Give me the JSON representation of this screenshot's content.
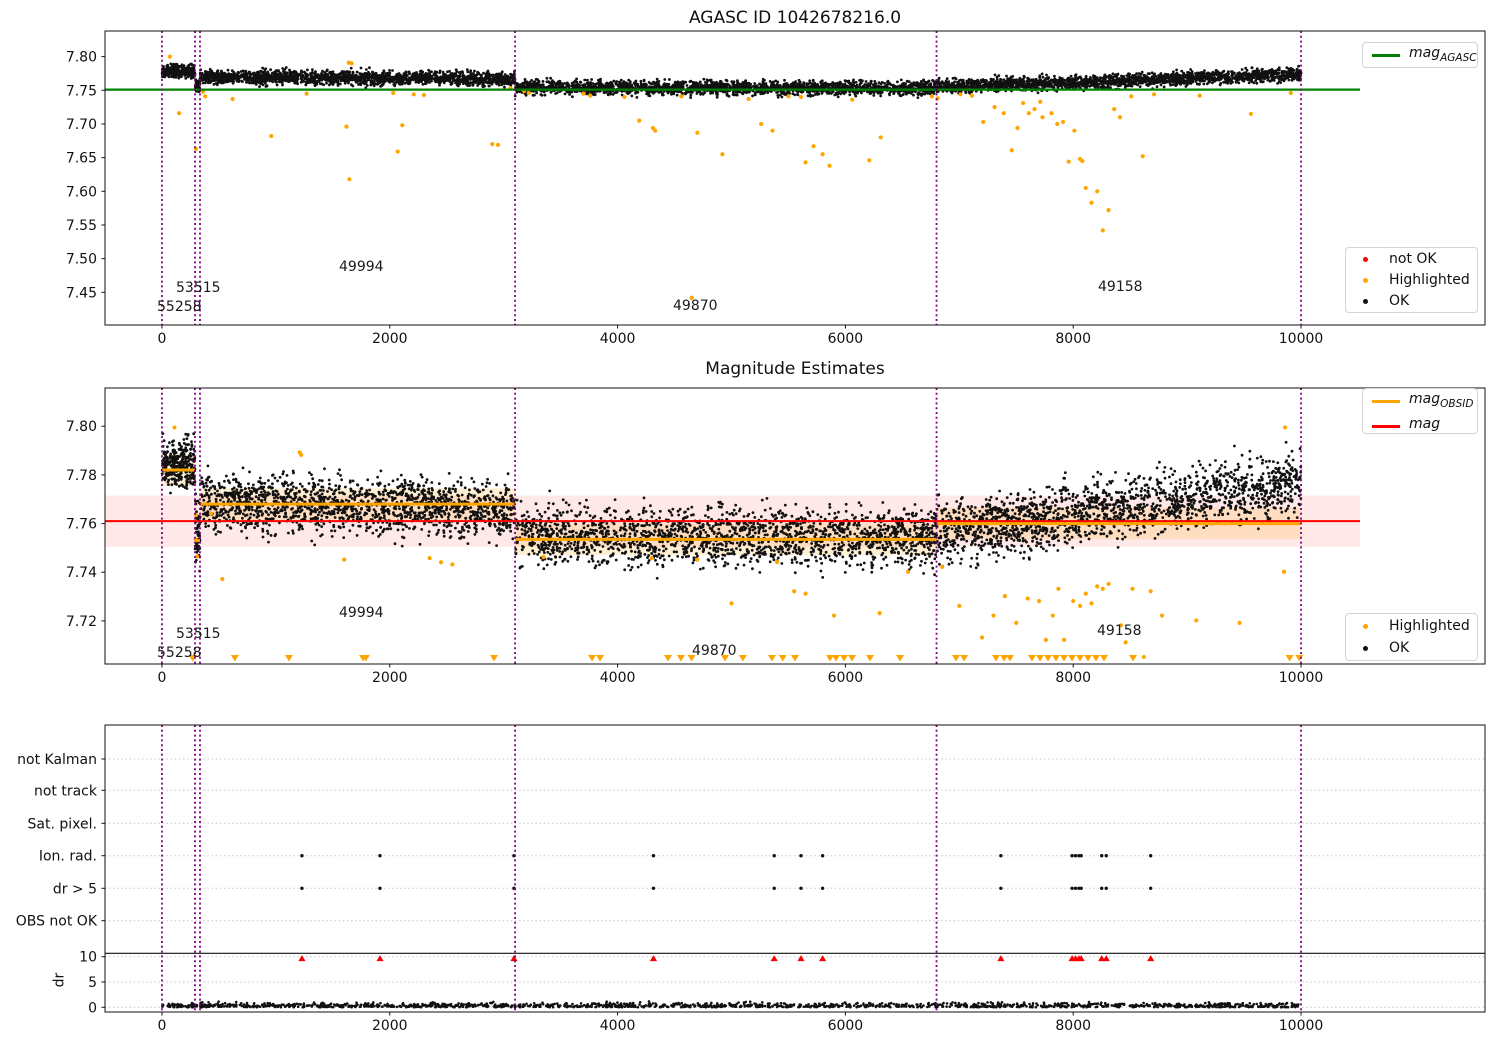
{
  "colors": {
    "ok": "#111111",
    "highlighted": "#ffa500",
    "not_ok": "#ff0000",
    "mag_agasc_line": "#008000",
    "mag_line": "#ff0000",
    "mag_obsid_line": "#ffa500",
    "obsid_boundary": "#800080",
    "mag_err_band": "rgba(255,0,0,0.09)",
    "obsid_band": "rgba(255,165,0,0.17)",
    "grid": "#c8c8c8",
    "spine": "#111111"
  },
  "chart_data": [
    {
      "type": "scatter",
      "title": "AGASC ID 1042678216.0",
      "xlim": [
        -500,
        11615
      ],
      "ylim": [
        7.4015,
        7.838
      ],
      "xticks": [
        0,
        2000,
        4000,
        6000,
        8000,
        10000
      ],
      "yticks": [
        7.45,
        7.5,
        7.55,
        7.6,
        7.65,
        7.7,
        7.75,
        7.8
      ],
      "grid": false,
      "mag_agasc": 7.751,
      "obsid_boundaries": [
        0,
        290,
        334,
        3100,
        6800,
        10000
      ],
      "legend_line": {
        "label": "mag",
        "sub": "AGASC"
      },
      "legend_points": [
        {
          "label": "not OK",
          "color": "#ff0000"
        },
        {
          "label": "Highlighted",
          "color": "#ffa500"
        },
        {
          "label": "OK",
          "color": "#111111"
        }
      ],
      "annotations": [
        {
          "text": "55258",
          "x": -45,
          "y": 7.425
        },
        {
          "text": "53515",
          "x": 120,
          "y": 7.452
        },
        {
          "text": "49994",
          "x": 1560,
          "y": 7.487
        },
        {
          "text": "49870",
          "x": 4490,
          "y": 7.428
        },
        {
          "text": "49158",
          "x": 8220,
          "y": 7.457
        }
      ],
      "ok_segments": [
        {
          "x0": 0,
          "x1": 290,
          "m0": 7.7775,
          "m1": 7.778,
          "sigma": 0.0048,
          "n": 300
        },
        {
          "x0": 290,
          "x1": 334,
          "m0": 7.757,
          "m1": 7.753,
          "sigma": 0.0042,
          "n": 60
        },
        {
          "x0": 334,
          "x1": 3100,
          "m0": 7.77,
          "m1": 7.7665,
          "sigma": 0.005,
          "n": 1750
        },
        {
          "x0": 3100,
          "x1": 6800,
          "m0": 7.754,
          "m1": 7.753,
          "sigma": 0.005,
          "n": 2100
        },
        {
          "x0": 6800,
          "x1": 10000,
          "m0": 7.755,
          "m1": 7.7735,
          "sigma": 0.005,
          "n": 1900
        }
      ],
      "highlighted": [
        [
          70,
          7.8
        ],
        [
          150,
          7.716
        ],
        [
          298,
          7.663
        ],
        [
          360,
          7.748
        ],
        [
          380,
          7.741
        ],
        [
          620,
          7.737
        ],
        [
          960,
          7.682
        ],
        [
          1270,
          7.745
        ],
        [
          1640,
          7.791
        ],
        [
          1665,
          7.79
        ],
        [
          1620,
          7.696
        ],
        [
          1645,
          7.618
        ],
        [
          2030,
          7.746
        ],
        [
          2070,
          7.659
        ],
        [
          2110,
          7.698
        ],
        [
          2210,
          7.744
        ],
        [
          2300,
          7.743
        ],
        [
          2900,
          7.67
        ],
        [
          2950,
          7.669
        ],
        [
          3060,
          7.753
        ],
        [
          3180,
          7.749
        ],
        [
          3220,
          7.746
        ],
        [
          3700,
          7.745
        ],
        [
          3760,
          7.742
        ],
        [
          4060,
          7.74
        ],
        [
          4190,
          7.705
        ],
        [
          4310,
          7.694
        ],
        [
          4330,
          7.69
        ],
        [
          4560,
          7.741
        ],
        [
          4650,
          7.442
        ],
        [
          4700,
          7.687
        ],
        [
          4920,
          7.655
        ],
        [
          5150,
          7.737
        ],
        [
          5260,
          7.7
        ],
        [
          5360,
          7.69
        ],
        [
          5500,
          7.741
        ],
        [
          5610,
          7.74
        ],
        [
          5650,
          7.643
        ],
        [
          5720,
          7.667
        ],
        [
          5800,
          7.655
        ],
        [
          5860,
          7.638
        ],
        [
          6060,
          7.736
        ],
        [
          6210,
          7.646
        ],
        [
          6310,
          7.68
        ],
        [
          6760,
          7.741
        ],
        [
          6810,
          7.738
        ],
        [
          7010,
          7.744
        ],
        [
          7110,
          7.742
        ],
        [
          7210,
          7.703
        ],
        [
          7310,
          7.725
        ],
        [
          7390,
          7.716
        ],
        [
          7460,
          7.661
        ],
        [
          7510,
          7.694
        ],
        [
          7560,
          7.731
        ],
        [
          7610,
          7.716
        ],
        [
          7660,
          7.722
        ],
        [
          7710,
          7.733
        ],
        [
          7730,
          7.71
        ],
        [
          7810,
          7.716
        ],
        [
          7860,
          7.7
        ],
        [
          7910,
          7.703
        ],
        [
          7960,
          7.644
        ],
        [
          8010,
          7.69
        ],
        [
          8060,
          7.648
        ],
        [
          8080,
          7.645
        ],
        [
          8110,
          7.605
        ],
        [
          8160,
          7.583
        ],
        [
          8210,
          7.6
        ],
        [
          8260,
          7.542
        ],
        [
          8310,
          7.572
        ],
        [
          8360,
          7.722
        ],
        [
          8410,
          7.71
        ],
        [
          8510,
          7.741
        ],
        [
          8610,
          7.652
        ],
        [
          8710,
          7.744
        ],
        [
          9110,
          7.742
        ],
        [
          9560,
          7.715
        ],
        [
          9910,
          7.746
        ]
      ]
    },
    {
      "type": "scatter",
      "title": "Magnitude Estimates",
      "xlim": [
        -500,
        11615
      ],
      "ylim": [
        7.7023,
        7.8157
      ],
      "xticks": [
        0,
        2000,
        4000,
        6000,
        8000,
        10000
      ],
      "yticks": [
        7.72,
        7.74,
        7.76,
        7.78,
        7.8
      ],
      "grid": false,
      "mag": 7.761,
      "mag_err": [
        7.7505,
        7.7715
      ],
      "obsid_segments": [
        {
          "x0": 0,
          "x1": 290,
          "mag": 7.782,
          "band": 0.0065
        },
        {
          "x0": 290,
          "x1": 334,
          "mag": 7.753,
          "band": 0
        },
        {
          "x0": 334,
          "x1": 3100,
          "mag": 7.768,
          "band": 0.0065
        },
        {
          "x0": 3100,
          "x1": 6800,
          "mag": 7.7535,
          "band": 0.0065
        },
        {
          "x0": 6800,
          "x1": 10000,
          "mag": 7.76,
          "band": 0.0065
        }
      ],
      "obsid_boundaries": [
        0,
        290,
        334,
        3100,
        6800,
        10000
      ],
      "legend_lines": [
        {
          "label": "mag",
          "sub": "OBSID",
          "color": "#ffa500"
        },
        {
          "label": "mag",
          "sub": "",
          "color": "#ff0000"
        }
      ],
      "legend_points": [
        {
          "label": "Highlighted",
          "color": "#ffa500"
        },
        {
          "label": "OK",
          "color": "#111111"
        }
      ],
      "annotations": [
        {
          "text": "55258",
          "x": -45,
          "y": 7.7085
        },
        {
          "text": "53515",
          "x": 120,
          "y": 7.716
        },
        {
          "text": "49994",
          "x": 1560,
          "y": 7.7245
        },
        {
          "text": "49870",
          "x": 4660,
          "y": 7.708
        },
        {
          "text": "49158",
          "x": 8210,
          "y": 7.7165
        }
      ],
      "ok_segments": [
        {
          "x0": 0,
          "x1": 290,
          "m0": 7.7845,
          "m1": 7.7845,
          "sigma": 0.0048,
          "n": 320
        },
        {
          "x0": 290,
          "x1": 334,
          "m0": 7.757,
          "m1": 7.755,
          "sigma": 0.0062,
          "n": 60
        },
        {
          "x0": 334,
          "x1": 3100,
          "m0": 7.769,
          "m1": 7.7655,
          "sigma": 0.0058,
          "n": 1600
        },
        {
          "x0": 3100,
          "x1": 6800,
          "m0": 7.7548,
          "m1": 7.7542,
          "sigma": 0.0058,
          "n": 1900
        },
        {
          "x0": 6800,
          "x1": 10000,
          "m0": 7.756,
          "m1": 7.776,
          "sigma": 0.0062,
          "n": 1750
        }
      ],
      "highlighted": [
        [
          110,
          7.7995
        ],
        [
          295,
          7.7535
        ],
        [
          300,
          7.7635
        ],
        [
          310,
          7.7465
        ],
        [
          430,
          7.7641
        ],
        [
          530,
          7.7372
        ],
        [
          1210,
          7.7892
        ],
        [
          1222,
          7.7882
        ],
        [
          1600,
          7.7452
        ],
        [
          2350,
          7.7458
        ],
        [
          2450,
          7.7441
        ],
        [
          2550,
          7.7432
        ],
        [
          3350,
          7.7462
        ],
        [
          4300,
          7.7458
        ],
        [
          4700,
          7.7452
        ],
        [
          5000,
          7.7272
        ],
        [
          5400,
          7.7442
        ],
        [
          5550,
          7.7322
        ],
        [
          5650,
          7.7312
        ],
        [
          5900,
          7.7222
        ],
        [
          6300,
          7.7232
        ],
        [
          6550,
          7.7402
        ],
        [
          6850,
          7.7422
        ],
        [
          7000,
          7.7262
        ],
        [
          7200,
          7.7132
        ],
        [
          7300,
          7.7222
        ],
        [
          7400,
          7.7302
        ],
        [
          7500,
          7.7192
        ],
        [
          7600,
          7.7292
        ],
        [
          7700,
          7.7282
        ],
        [
          7760,
          7.7122
        ],
        [
          7820,
          7.7222
        ],
        [
          7870,
          7.7332
        ],
        [
          7920,
          7.7122
        ],
        [
          8000,
          7.7282
        ],
        [
          8060,
          7.7262
        ],
        [
          8110,
          7.7312
        ],
        [
          8160,
          7.7272
        ],
        [
          8210,
          7.7342
        ],
        [
          8260,
          7.7332
        ],
        [
          8310,
          7.7352
        ],
        [
          8420,
          7.7182
        ],
        [
          8460,
          7.7112
        ],
        [
          8520,
          7.7332
        ],
        [
          8620,
          7.7052
        ],
        [
          8680,
          7.7322
        ],
        [
          8780,
          7.7222
        ],
        [
          9080,
          7.7202
        ],
        [
          9460,
          7.7192
        ],
        [
          9850,
          7.7402
        ],
        [
          9860,
          7.7995
        ]
      ],
      "clipped_low_x": [
        270,
        640,
        1115,
        1765,
        1790,
        2915,
        3776,
        3846,
        4443,
        4556,
        4650,
        4943,
        5100,
        5355,
        5450,
        5557,
        5865,
        5918,
        5988,
        6058,
        6216,
        6480,
        6971,
        7042,
        7322,
        7393,
        7445,
        7638,
        7709,
        7779,
        7849,
        7919,
        7990,
        8060,
        8130,
        8200,
        8270,
        8525,
        9900,
        9985
      ]
    },
    {
      "type": "flags",
      "rows": [
        "not Kalman",
        "not track",
        "Sat. pixel.",
        "Ion. rad.",
        "dr > 5",
        "OBS not OK"
      ],
      "rows_with_points": [
        "Ion. rad.",
        "dr > 5"
      ],
      "flag_x": [
        1229,
        1914,
        3090,
        4315,
        5375,
        5610,
        5800,
        7365,
        7990,
        8020,
        8050,
        8070,
        8250,
        8290,
        8680
      ],
      "dr_over_cap_x": [
        1229,
        1914,
        3090,
        4315,
        5375,
        5610,
        5800,
        7365,
        7990,
        8020,
        8050,
        8070,
        8250,
        8290,
        8680
      ],
      "dr_cap": 10,
      "dr_ticks": [
        0,
        5,
        10
      ],
      "ylabel": "dr",
      "xticks": [
        0,
        2000,
        4000,
        6000,
        8000,
        10000
      ],
      "obsid_boundaries": [
        0,
        290,
        334,
        3100,
        6800,
        10000
      ],
      "dr_scatter": {
        "x0": 0,
        "x1": 10000,
        "n": 1500,
        "mean": 0.3,
        "sigma": 0.3,
        "min": 0.02,
        "max": 2.3
      },
      "grid": true
    }
  ]
}
